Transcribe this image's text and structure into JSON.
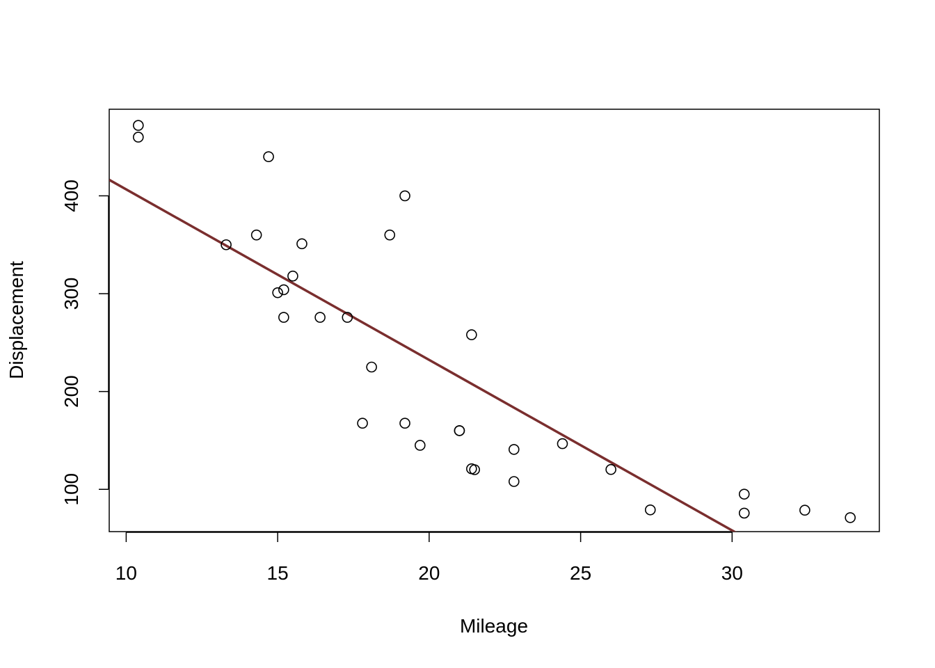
{
  "chart_data": {
    "type": "scatter",
    "title": "",
    "xlabel": "Mileage",
    "ylabel": "Displacement",
    "xlim": [
      9.44,
      34.86
    ],
    "ylim": [
      56.8,
      488.5
    ],
    "xticks": [
      10,
      15,
      20,
      25,
      30
    ],
    "yticks": [
      100,
      200,
      300,
      400
    ],
    "grid": false,
    "points_style": "open-circle",
    "point_color": "#000000",
    "regression_line": {
      "intercept": 580.9,
      "slope": -17.43,
      "color": "#7a2e2e"
    },
    "series": [
      {
        "x": [
          21.0,
          21.0,
          22.8,
          21.4,
          18.7,
          18.1,
          14.3,
          24.4,
          22.8,
          19.2,
          17.8,
          16.4,
          17.3,
          15.2,
          10.4,
          10.4,
          14.7,
          32.4,
          30.4,
          33.9,
          21.5,
          15.5,
          15.2,
          13.3,
          19.2,
          27.3,
          26.0,
          30.4,
          15.8,
          19.7,
          15.0,
          21.4
        ],
        "y": [
          160,
          160,
          108,
          258,
          360,
          225,
          360,
          146.7,
          140.8,
          167.6,
          167.6,
          275.8,
          275.8,
          275.8,
          472,
          460,
          440,
          78.7,
          75.7,
          71.1,
          120.1,
          318,
          304,
          350,
          400,
          79,
          120.3,
          95.1,
          351,
          145,
          301,
          121
        ]
      }
    ]
  }
}
